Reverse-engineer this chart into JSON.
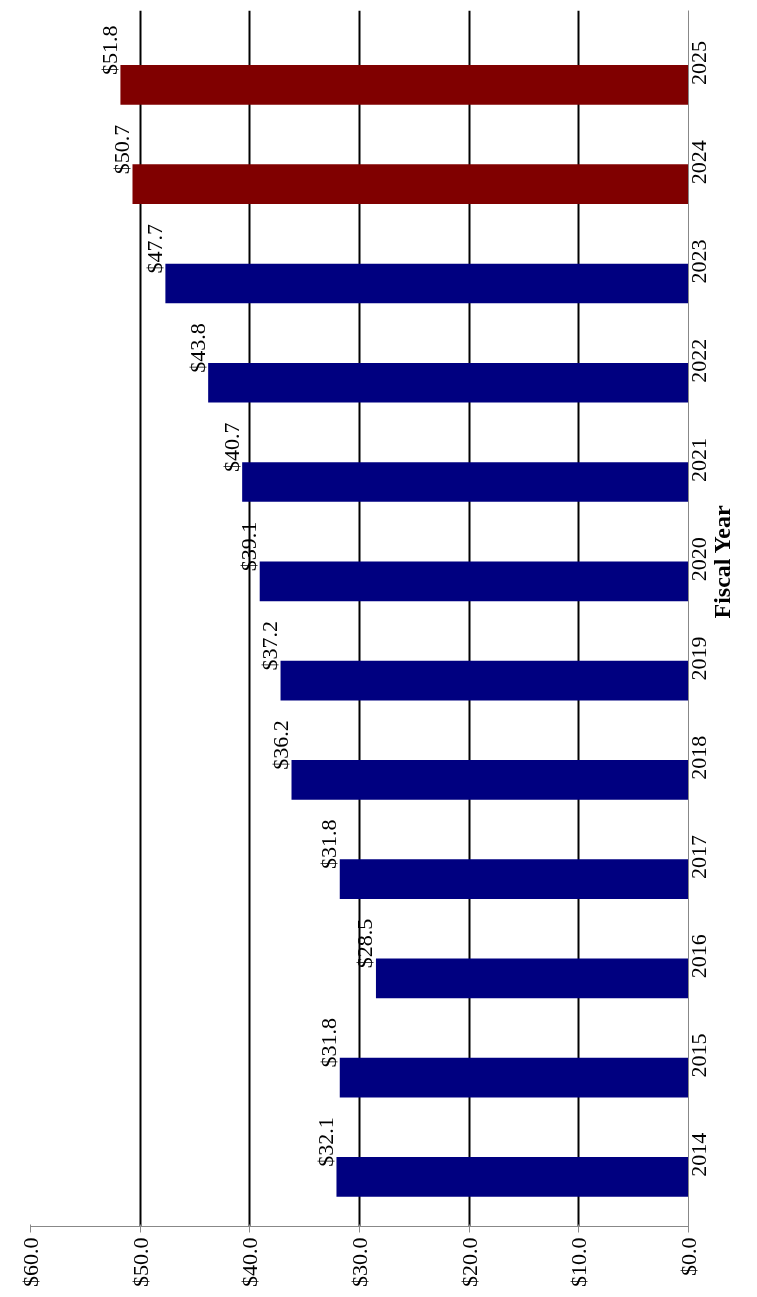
{
  "chart_data": {
    "type": "bar",
    "orientation": "horizontal",
    "ylabel": "Fiscal Year",
    "categories": [
      "2025",
      "2024",
      "2023",
      "2022",
      "2021",
      "2020",
      "2019",
      "2018",
      "2017",
      "2016",
      "2015",
      "2014"
    ],
    "values": [
      51.8,
      50.7,
      47.7,
      43.8,
      40.7,
      39.1,
      37.2,
      36.2,
      31.8,
      28.5,
      31.8,
      32.1
    ],
    "colors": [
      "#800000",
      "#800000",
      "#000080",
      "#000080",
      "#000080",
      "#000080",
      "#000080",
      "#000080",
      "#000080",
      "#000080",
      "#000080",
      "#000080"
    ],
    "value_labels": [
      "$51.8",
      "$50.7",
      "$47.7",
      "$43.8",
      "$40.7",
      "$39.1",
      "$37.2",
      "$36.2",
      "$31.8",
      "$28.5",
      "$31.8",
      "$32.1"
    ],
    "xlim": [
      60,
      0
    ],
    "xticks": [
      {
        "value": 60,
        "label": "$60.0"
      },
      {
        "value": 50,
        "label": "$50.0"
      },
      {
        "value": 40,
        "label": "$40.0"
      },
      {
        "value": 30,
        "label": "$30.0"
      },
      {
        "value": 20,
        "label": "$20.0"
      },
      {
        "value": 10,
        "label": "$10.0"
      },
      {
        "value": 0,
        "label": "$0.0"
      }
    ],
    "grid": "x"
  }
}
